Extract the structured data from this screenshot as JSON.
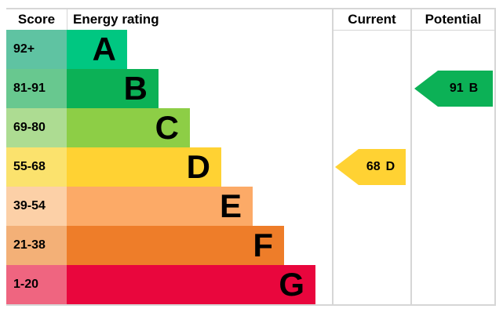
{
  "header": {
    "score": "Score",
    "energy_rating": "Energy rating",
    "current": "Current",
    "potential": "Potential"
  },
  "chart_data": {
    "type": "bar",
    "description": "EPC energy efficiency rating bands with current and potential scores",
    "categories": [
      "A",
      "B",
      "C",
      "D",
      "E",
      "F",
      "G"
    ],
    "bands": [
      {
        "letter": "A",
        "range": "92+",
        "color": "#00c781",
        "tint": "#5fc3a2"
      },
      {
        "letter": "B",
        "range": "81-91",
        "color": "#0cb156",
        "tint": "#68c88f"
      },
      {
        "letter": "C",
        "range": "69-80",
        "color": "#8dce46",
        "tint": "#addc92"
      },
      {
        "letter": "D",
        "range": "55-68",
        "color": "#ffd233",
        "tint": "#fbe26d"
      },
      {
        "letter": "E",
        "range": "39-54",
        "color": "#fcaa67",
        "tint": "#fcd0a7"
      },
      {
        "letter": "F",
        "range": "21-38",
        "color": "#ee7d29",
        "tint": "#f3b077"
      },
      {
        "letter": "G",
        "range": "1-20",
        "color": "#e9063d",
        "tint": "#ef6580"
      }
    ],
    "current": {
      "score": "68",
      "band": "D",
      "band_index": 3,
      "color": "#ffd233"
    },
    "potential": {
      "score": "91",
      "band": "B",
      "band_index": 1,
      "color": "#0cb156"
    }
  }
}
